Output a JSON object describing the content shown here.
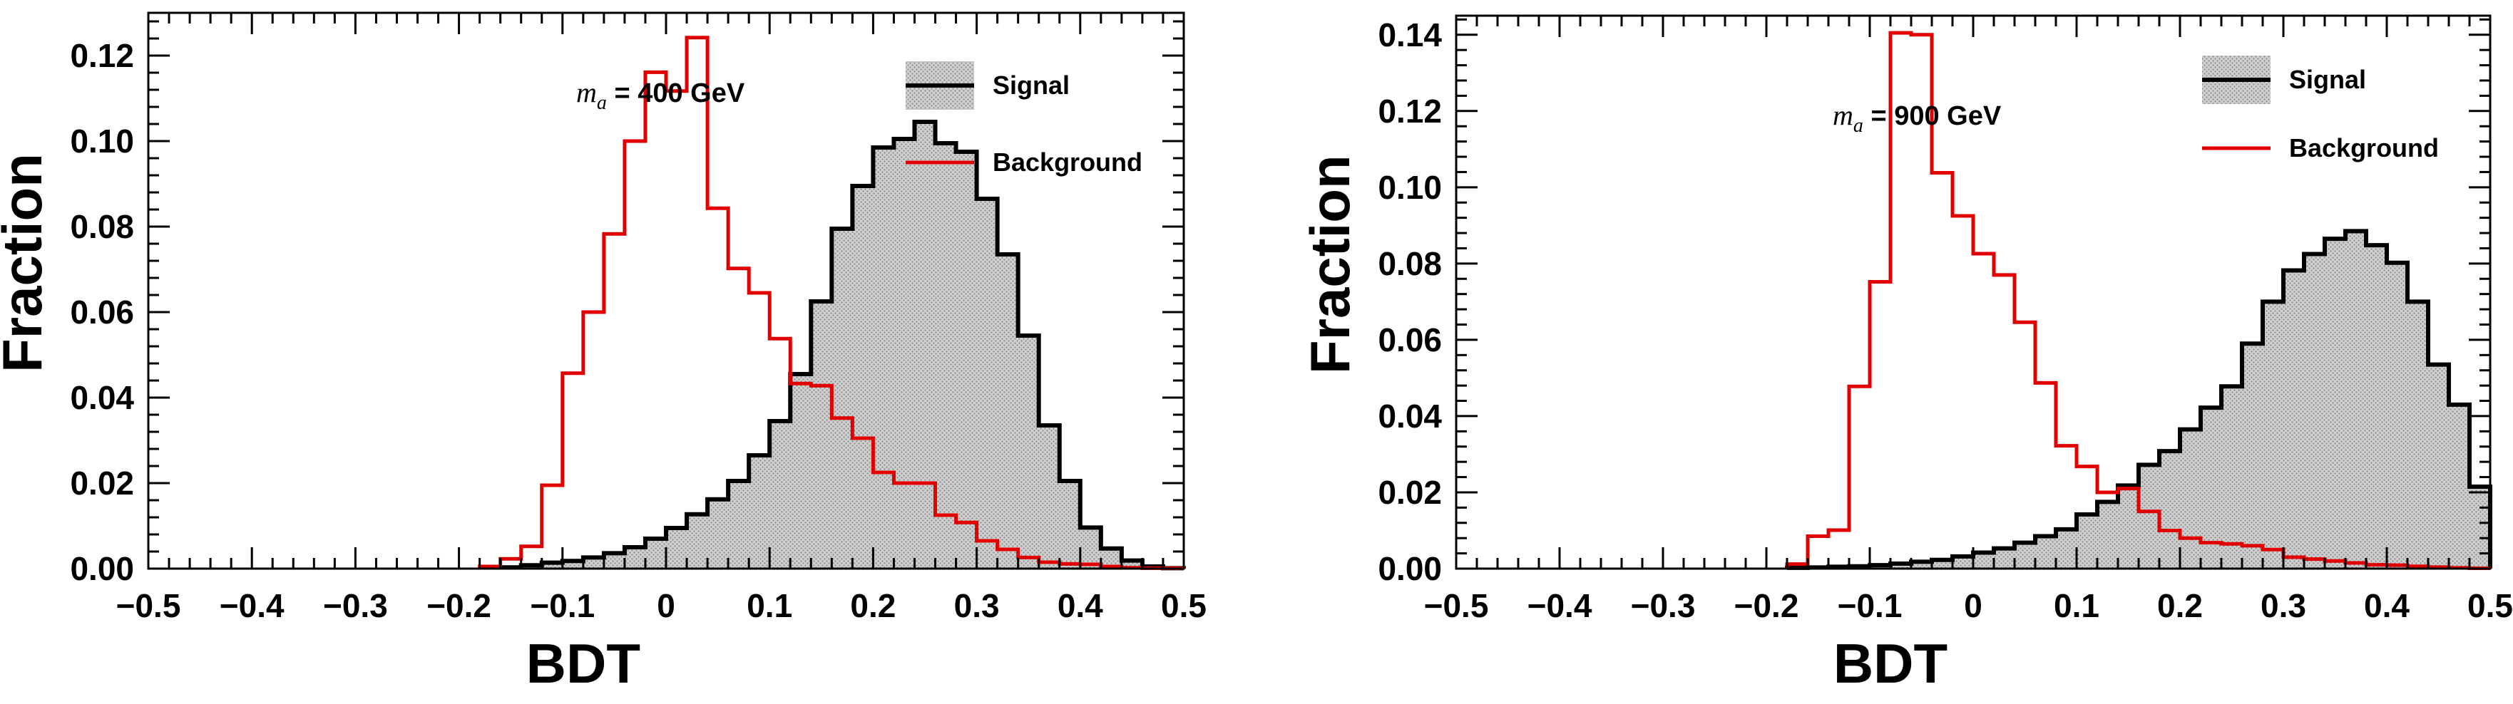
{
  "chart_data": [
    {
      "type": "histogram",
      "xlabel": "BDT",
      "ylabel": "Fraction",
      "annotation": {
        "symbol": "m",
        "subscript": "a",
        "text": " = 400 GeV"
      },
      "xlim": [
        -0.5,
        0.5
      ],
      "ylim": [
        0,
        0.13
      ],
      "x_ticks": [
        -0.5,
        -0.4,
        -0.3,
        -0.2,
        -0.1,
        0,
        0.1,
        0.2,
        0.3,
        0.4,
        0.5
      ],
      "x_tick_labels": [
        "−0.5",
        "−0.4",
        "−0.3",
        "−0.2",
        "−0.1",
        "0",
        "0.1",
        "0.2",
        "0.3",
        "0.4",
        "0.5"
      ],
      "y_ticks": [
        0,
        0.02,
        0.04,
        0.06,
        0.08,
        0.1,
        0.12
      ],
      "y_tick_labels": [
        "0.00",
        "0.02",
        "0.04",
        "0.06",
        "0.08",
        "0.10",
        "0.12"
      ],
      "bin_start": -0.5,
      "bin_width": 0.02,
      "legend_position": "top-right",
      "series": [
        {
          "name": "Signal",
          "style": "filled",
          "color": "#000000",
          "fill": "#c8c8c8",
          "values": [
            0,
            0,
            0,
            0,
            0,
            0,
            0,
            0,
            0,
            0,
            0,
            0,
            0,
            0,
            0,
            0,
            0,
            0.0003,
            0.0008,
            0.0014,
            0.0018,
            0.0026,
            0.0036,
            0.005,
            0.007,
            0.0095,
            0.0127,
            0.0162,
            0.0205,
            0.0265,
            0.0345,
            0.0455,
            0.0625,
            0.0795,
            0.0895,
            0.0985,
            0.1005,
            0.1045,
            0.0995,
            0.0975,
            0.0865,
            0.0735,
            0.0545,
            0.0335,
            0.0205,
            0.0096,
            0.0047,
            0.0019,
            0.0005,
            0.0001
          ]
        },
        {
          "name": "Background",
          "style": "line",
          "color": "#e00000",
          "values": [
            0,
            0,
            0,
            0,
            0,
            0,
            0,
            0,
            0,
            0,
            0,
            0,
            0,
            0,
            0,
            0,
            0.0005,
            0.0023,
            0.0052,
            0.0195,
            0.0457,
            0.06,
            0.0783,
            0.1,
            0.1161,
            0.1117,
            0.1242,
            0.0843,
            0.0702,
            0.0645,
            0.0538,
            0.0433,
            0.0428,
            0.0352,
            0.0305,
            0.0225,
            0.02,
            0.02,
            0.0125,
            0.0108,
            0.0065,
            0.0045,
            0.0026,
            0.0015,
            0.0011,
            0.001,
            0.0005,
            0.0002,
            0.0001,
            0.0001
          ]
        }
      ]
    },
    {
      "type": "histogram",
      "xlabel": "BDT",
      "ylabel": "Fraction",
      "annotation": {
        "symbol": "m",
        "subscript": "a",
        "text": " = 900 GeV"
      },
      "xlim": [
        -0.5,
        0.5
      ],
      "ylim": [
        0,
        0.145
      ],
      "x_ticks": [
        -0.5,
        -0.4,
        -0.3,
        -0.2,
        -0.1,
        0,
        0.1,
        0.2,
        0.3,
        0.4,
        0.5
      ],
      "x_tick_labels": [
        "−0.5",
        "−0.4",
        "−0.3",
        "−0.2",
        "−0.1",
        "0",
        "0.1",
        "0.2",
        "0.3",
        "0.4",
        "0.5"
      ],
      "y_ticks": [
        0,
        0.02,
        0.04,
        0.06,
        0.08,
        0.1,
        0.12,
        0.14
      ],
      "y_tick_labels": [
        "0.00",
        "0.02",
        "0.04",
        "0.06",
        "0.08",
        "0.10",
        "0.12",
        "0.14"
      ],
      "bin_start": -0.5,
      "bin_width": 0.02,
      "legend_position": "top-right",
      "series": [
        {
          "name": "Signal",
          "style": "filled",
          "color": "#000000",
          "fill": "#c8c8c8",
          "values": [
            0,
            0,
            0,
            0,
            0,
            0,
            0,
            0,
            0,
            0,
            0,
            0,
            0,
            0,
            0,
            0,
            0.0002,
            0.0003,
            0.0005,
            0.0006,
            0.0009,
            0.0013,
            0.0018,
            0.0023,
            0.0032,
            0.0042,
            0.0053,
            0.0068,
            0.0085,
            0.0103,
            0.0142,
            0.0175,
            0.0218,
            0.0272,
            0.0308,
            0.0365,
            0.0422,
            0.0478,
            0.059,
            0.07,
            0.0782,
            0.0825,
            0.0865,
            0.0885,
            0.0848,
            0.0802,
            0.07,
            0.0535,
            0.043,
            0.0215
          ]
        },
        {
          "name": "Background",
          "style": "line",
          "color": "#e00000",
          "values": [
            0,
            0,
            0,
            0,
            0,
            0,
            0,
            0,
            0,
            0,
            0,
            0,
            0,
            0,
            0,
            0,
            0.0012,
            0.0085,
            0.0101,
            0.0478,
            0.0752,
            0.1405,
            0.14,
            0.1038,
            0.0925,
            0.0826,
            0.077,
            0.0646,
            0.0487,
            0.0322,
            0.0268,
            0.02,
            0.021,
            0.015,
            0.01,
            0.008,
            0.0068,
            0.0065,
            0.006,
            0.005,
            0.003,
            0.0025,
            0.002,
            0.0015,
            0.001,
            0.0009,
            0.0006,
            0.0004,
            0.0002,
            0.0001
          ]
        }
      ]
    }
  ]
}
